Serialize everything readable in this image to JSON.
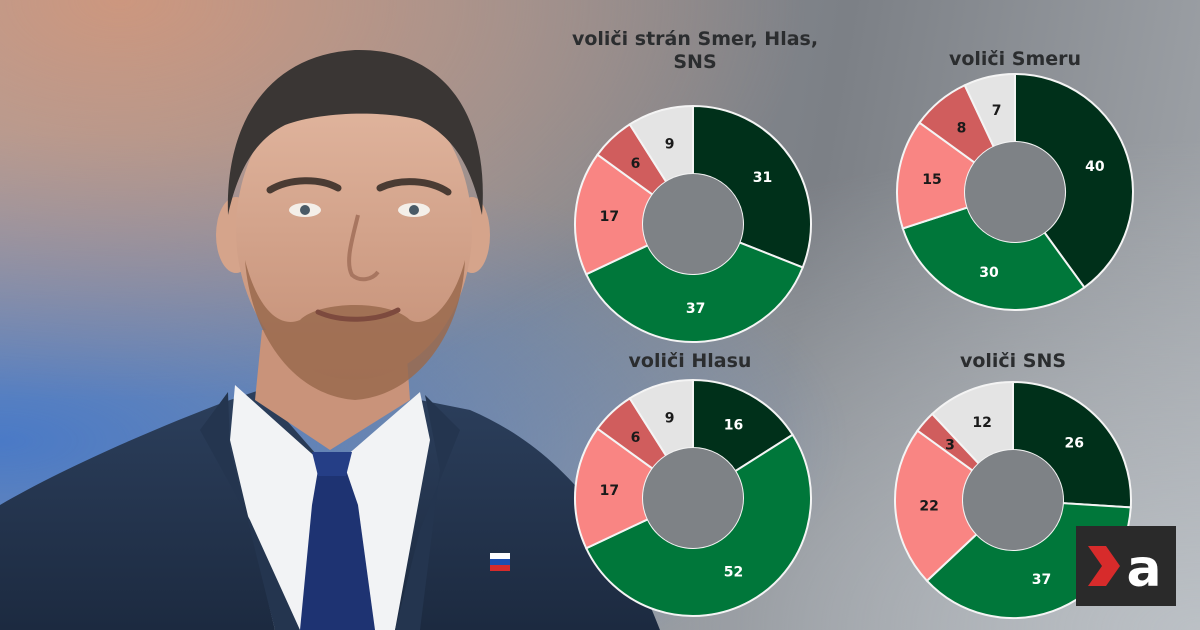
{
  "colors": {
    "dark_green": "#00301a",
    "green": "#00773a",
    "salmon": "#f98583",
    "dark_salmon": "#d05d5d",
    "light_gray": "#e4e4e4",
    "hole": "#7e8286",
    "logo_red": "#d72b2b"
  },
  "logo": {
    "letter": "a"
  },
  "chart_data": [
    {
      "type": "pie",
      "title": "voliči strán Smer, Hlas, SNS",
      "values": [
        31,
        37,
        17,
        6,
        9
      ],
      "labels": [
        "31",
        "37",
        "17",
        "6",
        "9"
      ],
      "colors": [
        "#00301a",
        "#00773a",
        "#f98583",
        "#d05d5d",
        "#e4e4e4"
      ]
    },
    {
      "type": "pie",
      "title": "voliči Smeru",
      "values": [
        40,
        30,
        15,
        8,
        7
      ],
      "labels": [
        "40",
        "30",
        "15",
        "8",
        "7"
      ],
      "colors": [
        "#00301a",
        "#00773a",
        "#f98583",
        "#d05d5d",
        "#e4e4e4"
      ]
    },
    {
      "type": "pie",
      "title": "voliči Hlasu",
      "values": [
        16,
        52,
        17,
        6,
        9
      ],
      "labels": [
        "16",
        "52",
        "17",
        "6",
        "9"
      ],
      "colors": [
        "#00301a",
        "#00773a",
        "#f98583",
        "#d05d5d",
        "#e4e4e4"
      ]
    },
    {
      "type": "pie",
      "title": "voliči SNS",
      "values": [
        26,
        37,
        22,
        3,
        12
      ],
      "labels": [
        "26",
        "37",
        "22",
        "3",
        "12"
      ],
      "colors": [
        "#00301a",
        "#00773a",
        "#f98583",
        "#d05d5d",
        "#e4e4e4"
      ]
    }
  ]
}
